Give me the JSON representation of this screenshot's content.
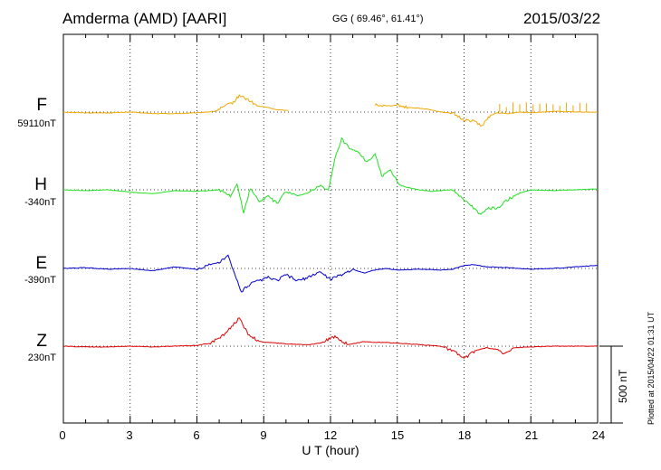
{
  "header": {
    "station": "Amderma (AMD)  [AARI]",
    "coords": "GG ( 69.46°,  61.41°)",
    "date": "2015/03/22"
  },
  "footer": {
    "plotted": "Plotted at 2015/04/22 01:31  UT"
  },
  "scale_label": "500 nT",
  "colors": {
    "F": "#f0a800",
    "H": "#22e022",
    "E": "#0000cc",
    "Z": "#e00000"
  },
  "chart_data": {
    "type": "line",
    "title": "",
    "xlabel": "U T (hour)",
    "ylabel": "",
    "xlim": [
      0,
      24
    ],
    "x_ticks": [
      "0",
      "3",
      "6",
      "9",
      "12",
      "15",
      "18",
      "21",
      "24"
    ],
    "scale_bar_nT": 500,
    "series": [
      {
        "name": "F",
        "baseline": "59110nT",
        "points": [
          [
            0,
            0
          ],
          [
            1,
            -5
          ],
          [
            2,
            -5
          ],
          [
            3,
            0
          ],
          [
            4,
            -10
          ],
          [
            5,
            -10
          ],
          [
            6,
            -5
          ],
          [
            6.8,
            5
          ],
          [
            7.3,
            40
          ],
          [
            7.7,
            70
          ],
          [
            7.9,
            110
          ],
          [
            8.3,
            80
          ],
          [
            8.7,
            40
          ],
          [
            9.2,
            30
          ],
          [
            9.6,
            15
          ],
          [
            10.1,
            10
          ],
          [
            null,
            null
          ],
          [
            14,
            50
          ],
          [
            14.5,
            40
          ],
          [
            15,
            45
          ],
          [
            15.5,
            30
          ],
          [
            16,
            25
          ],
          [
            16.5,
            15
          ],
          [
            17,
            0
          ],
          [
            17.5,
            -10
          ],
          [
            18,
            -50
          ],
          [
            18.5,
            -60
          ],
          [
            18.8,
            -90
          ],
          [
            19.2,
            -20
          ],
          [
            19.5,
            -5
          ],
          [
            20,
            -10
          ],
          [
            20.5,
            0
          ],
          [
            21,
            -5
          ],
          [
            22,
            5
          ],
          [
            23,
            0
          ],
          [
            24,
            0
          ]
        ]
      },
      {
        "name": "H",
        "baseline": "-340nT",
        "points": [
          [
            0,
            0
          ],
          [
            1,
            -5
          ],
          [
            2,
            0
          ],
          [
            3,
            -15
          ],
          [
            4,
            -25
          ],
          [
            5,
            -5
          ],
          [
            6,
            -10
          ],
          [
            7,
            0
          ],
          [
            7.5,
            -40
          ],
          [
            7.8,
            40
          ],
          [
            8.1,
            -150
          ],
          [
            8.4,
            10
          ],
          [
            8.8,
            -80
          ],
          [
            9.2,
            -40
          ],
          [
            9.6,
            -90
          ],
          [
            10,
            -10
          ],
          [
            10.5,
            -40
          ],
          [
            11,
            -20
          ],
          [
            11.5,
            30
          ],
          [
            11.9,
            -10
          ],
          [
            12.2,
            200
          ],
          [
            12.5,
            330
          ],
          [
            12.9,
            260
          ],
          [
            13.3,
            240
          ],
          [
            13.6,
            180
          ],
          [
            14,
            230
          ],
          [
            14.3,
            90
          ],
          [
            14.7,
            130
          ],
          [
            15.1,
            30
          ],
          [
            15.6,
            10
          ],
          [
            16,
            0
          ],
          [
            16.5,
            -10
          ],
          [
            17,
            -5
          ],
          [
            17.5,
            0
          ],
          [
            17.9,
            -50
          ],
          [
            18.3,
            -100
          ],
          [
            18.7,
            -160
          ],
          [
            19.1,
            -120
          ],
          [
            19.5,
            -120
          ],
          [
            20,
            -60
          ],
          [
            20.5,
            -20
          ],
          [
            21,
            0
          ],
          [
            22,
            -5
          ],
          [
            23,
            0
          ],
          [
            24,
            5
          ]
        ]
      },
      {
        "name": "E",
        "baseline": "-390nT",
        "points": [
          [
            0,
            0
          ],
          [
            1,
            5
          ],
          [
            2,
            -5
          ],
          [
            3,
            0
          ],
          [
            4,
            -15
          ],
          [
            5,
            10
          ],
          [
            6,
            -5
          ],
          [
            6.6,
            25
          ],
          [
            7,
            40
          ],
          [
            7.4,
            80
          ],
          [
            7.7,
            -40
          ],
          [
            8,
            -150
          ],
          [
            8.4,
            -100
          ],
          [
            8.8,
            -80
          ],
          [
            9.2,
            -60
          ],
          [
            9.6,
            -80
          ],
          [
            10,
            -40
          ],
          [
            10.5,
            -80
          ],
          [
            11,
            -60
          ],
          [
            11.5,
            -20
          ],
          [
            12,
            -70
          ],
          [
            12.5,
            -40
          ],
          [
            13,
            -5
          ],
          [
            13.5,
            -30
          ],
          [
            14,
            -10
          ],
          [
            14.5,
            0
          ],
          [
            15,
            -10
          ],
          [
            16,
            -5
          ],
          [
            17,
            -10
          ],
          [
            17.5,
            -5
          ],
          [
            18,
            20
          ],
          [
            18.5,
            25
          ],
          [
            19,
            10
          ],
          [
            20,
            5
          ],
          [
            21,
            -5
          ],
          [
            22,
            0
          ],
          [
            23,
            10
          ],
          [
            24,
            20
          ]
        ]
      },
      {
        "name": "Z",
        "baseline": "230nT",
        "points": [
          [
            0,
            0
          ],
          [
            1,
            -5
          ],
          [
            2,
            -5
          ],
          [
            3,
            0
          ],
          [
            4,
            -5
          ],
          [
            5,
            0
          ],
          [
            6,
            5
          ],
          [
            6.6,
            20
          ],
          [
            7.1,
            60
          ],
          [
            7.5,
            120
          ],
          [
            7.9,
            180
          ],
          [
            8.3,
            80
          ],
          [
            8.8,
            30
          ],
          [
            9.2,
            25
          ],
          [
            10,
            15
          ],
          [
            11,
            10
          ],
          [
            11.5,
            20
          ],
          [
            12.2,
            60
          ],
          [
            12.8,
            10
          ],
          [
            13.5,
            30
          ],
          [
            14,
            25
          ],
          [
            15,
            20
          ],
          [
            16,
            10
          ],
          [
            17,
            0
          ],
          [
            17.6,
            -40
          ],
          [
            18,
            -80
          ],
          [
            18.5,
            -30
          ],
          [
            19,
            -10
          ],
          [
            19.4,
            -20
          ],
          [
            19.8,
            -50
          ],
          [
            20.2,
            -10
          ],
          [
            21,
            -5
          ],
          [
            22,
            0
          ],
          [
            23,
            0
          ],
          [
            24,
            0
          ]
        ]
      }
    ]
  }
}
